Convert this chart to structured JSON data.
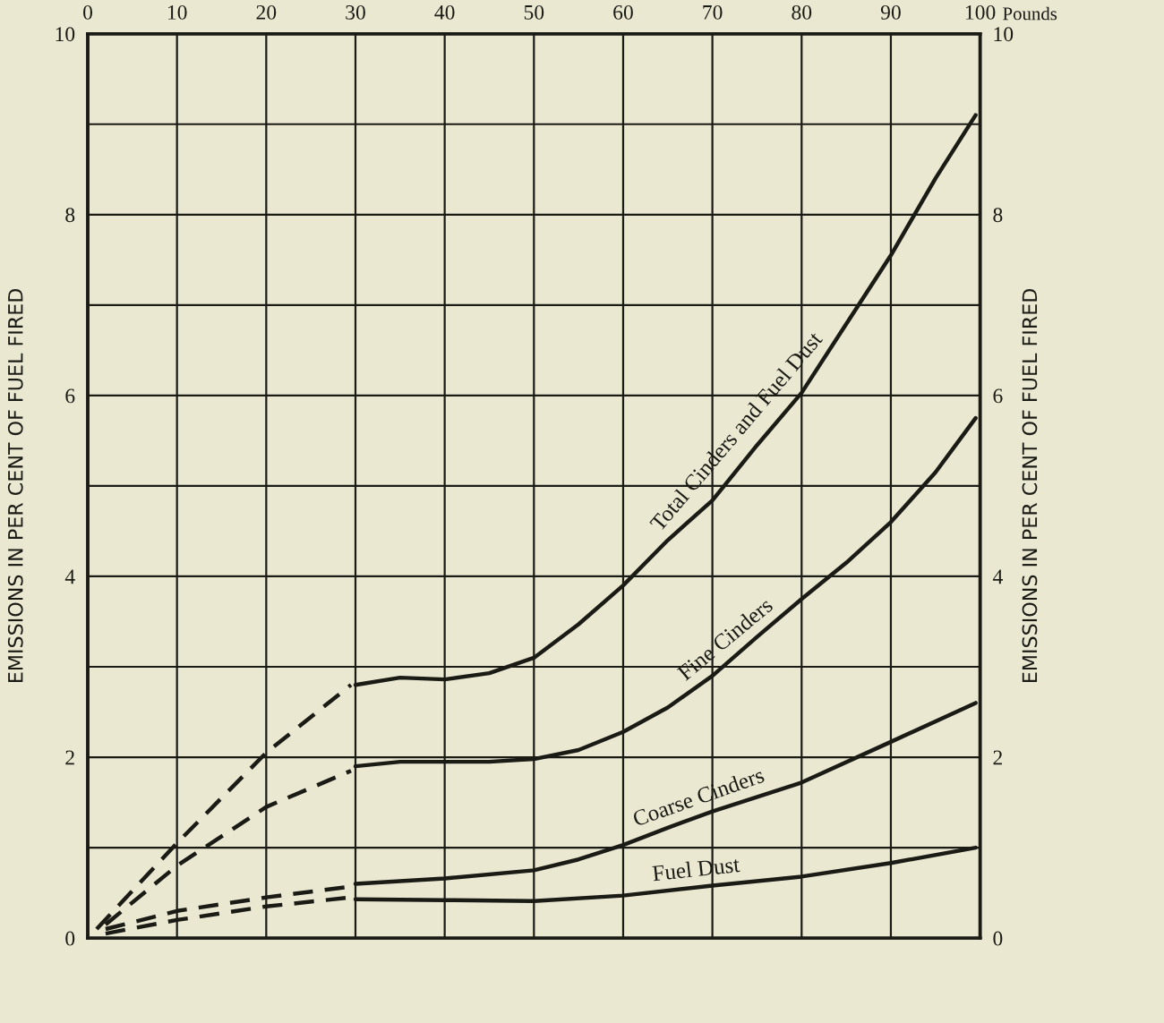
{
  "chart_data": {
    "type": "line",
    "xlabel": "Pounds",
    "ylabel": "EMISSIONS IN PER CENT OF FUEL FIRED",
    "y2label": "EMISSIONS IN PER CENT OF FUEL FIRED",
    "xlim": [
      0,
      100
    ],
    "xticks": [
      0,
      10,
      20,
      30,
      40,
      50,
      60,
      70,
      80,
      90,
      100
    ],
    "ylim": [
      0,
      10
    ],
    "yticks": [
      0,
      {
        "value": 1,
        "label": null
      },
      2,
      {
        "value": 3,
        "label": null
      },
      4,
      {
        "value": 5,
        "label": null
      },
      6,
      {
        "value": 7,
        "label": null
      },
      8,
      {
        "value": 9,
        "label": null
      },
      10
    ],
    "y2lim": [
      0,
      10
    ],
    "y2ticks": [
      0,
      2,
      4,
      6,
      8,
      10
    ],
    "grid": true,
    "series": [
      {
        "name": "Total Cinders and Fuel Dust",
        "color": "#1b1b16",
        "line_style": "solid",
        "x": [
          30,
          35,
          40,
          45,
          50,
          55,
          60,
          65,
          70,
          75,
          80,
          85,
          90,
          95,
          99.5
        ],
        "values": [
          2.8,
          2.88,
          2.86,
          2.93,
          3.1,
          3.47,
          3.9,
          4.4,
          4.84,
          5.45,
          6.03,
          6.79,
          7.55,
          8.4,
          9.1
        ]
      },
      {
        "color": "#1b1b16",
        "line_style": "dashed",
        "x": [
          1,
          10,
          20,
          29.5
        ],
        "values": [
          0.1,
          1.05,
          2.05,
          2.8
        ]
      },
      {
        "name": "Fine Cinders",
        "color": "#1b1b16",
        "line_style": "solid",
        "x": [
          30,
          35,
          40,
          45,
          50,
          55,
          60,
          65,
          70,
          75,
          80,
          85,
          90,
          95,
          99.5
        ],
        "values": [
          1.9,
          1.95,
          1.95,
          1.95,
          1.98,
          2.08,
          2.28,
          2.55,
          2.9,
          3.33,
          3.75,
          4.15,
          4.6,
          5.15,
          5.75
        ]
      },
      {
        "color": "#1b1b16",
        "line_style": "dashed",
        "x": [
          2,
          10,
          20,
          29.5
        ],
        "values": [
          0.15,
          0.8,
          1.45,
          1.85
        ]
      },
      {
        "name": "Coarse Cinders",
        "color": "#1b1b16",
        "line_style": "solid",
        "x": [
          30,
          40,
          50,
          55,
          60,
          65,
          70,
          80,
          90,
          99.5
        ],
        "values": [
          0.6,
          0.66,
          0.75,
          0.87,
          1.03,
          1.22,
          1.4,
          1.72,
          2.17,
          2.6
        ]
      },
      {
        "color": "#1b1b16",
        "line_style": "dashed",
        "x": [
          2,
          10,
          20,
          29.5
        ],
        "values": [
          0.1,
          0.3,
          0.45,
          0.57
        ]
      },
      {
        "name": "Fuel Dust",
        "color": "#1b1b16",
        "line_style": "solid",
        "x": [
          30,
          40,
          50,
          60,
          70,
          80,
          90,
          99.5
        ],
        "values": [
          0.43,
          0.42,
          0.41,
          0.47,
          0.58,
          0.68,
          0.83,
          1.0
        ]
      },
      {
        "color": "#1b1b16",
        "line_style": "dashed",
        "x": [
          2,
          10,
          20,
          29.5
        ],
        "values": [
          0.05,
          0.2,
          0.35,
          0.45
        ]
      }
    ]
  }
}
